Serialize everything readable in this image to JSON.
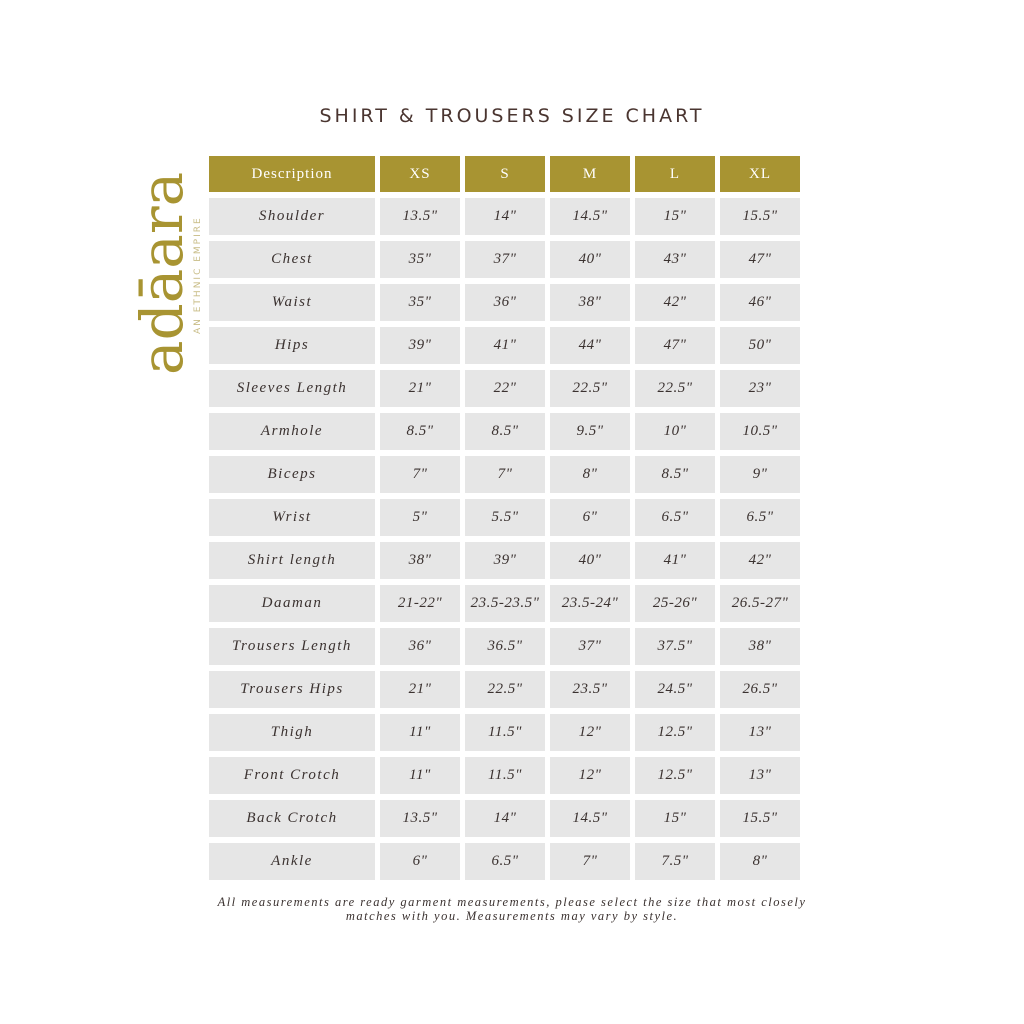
{
  "title": "SHIRT & TROUSERS SIZE CHART",
  "logo": {
    "name": "adāara",
    "tagline": "AN ETHNIC EMPIRE"
  },
  "colors": {
    "header": "#a89432",
    "cell": "#e6e6e6",
    "text": "#3b3230"
  },
  "table": {
    "headers": [
      "Description",
      "XS",
      "S",
      "M",
      "L",
      "XL"
    ],
    "rows": [
      [
        "Shoulder",
        "13.5\"",
        "14\"",
        "14.5\"",
        "15\"",
        "15.5\""
      ],
      [
        "Chest",
        "35\"",
        "37\"",
        "40\"",
        "43\"",
        "47\""
      ],
      [
        "Waist",
        "35\"",
        "36\"",
        "38\"",
        "42\"",
        "46\""
      ],
      [
        "Hips",
        "39\"",
        "41\"",
        "44\"",
        "47\"",
        "50\""
      ],
      [
        "Sleeves Length",
        "21\"",
        "22\"",
        "22.5\"",
        "22.5\"",
        "23\""
      ],
      [
        "Armhole",
        "8.5\"",
        "8.5\"",
        "9.5\"",
        "10\"",
        "10.5\""
      ],
      [
        "Biceps",
        "7\"",
        "7\"",
        "8\"",
        "8.5\"",
        "9\""
      ],
      [
        "Wrist",
        "5\"",
        "5.5\"",
        "6\"",
        "6.5\"",
        "6.5\""
      ],
      [
        "Shirt length",
        "38\"",
        "39\"",
        "40\"",
        "41\"",
        "42\""
      ],
      [
        "Daaman",
        "21-22\"",
        "23.5-23.5\"",
        "23.5-24\"",
        "25-26\"",
        "26.5-27\""
      ],
      [
        "Trousers Length",
        "36\"",
        "36.5\"",
        "37\"",
        "37.5\"",
        "38\""
      ],
      [
        "Trousers Hips",
        "21\"",
        "22.5\"",
        "23.5\"",
        "24.5\"",
        "26.5\""
      ],
      [
        "Thigh",
        "11\"",
        "11.5\"",
        "12\"",
        "12.5\"",
        "13\""
      ],
      [
        "Front Crotch",
        "11\"",
        "11.5\"",
        "12\"",
        "12.5\"",
        "13\""
      ],
      [
        "Back Crotch",
        "13.5\"",
        "14\"",
        "14.5\"",
        "15\"",
        "15.5\""
      ],
      [
        "Ankle",
        "6\"",
        "6.5\"",
        "7\"",
        "7.5\"",
        "8\""
      ]
    ]
  },
  "note": "All measurements are ready garment measurements, please select the size that most closely matches with you. Measurements may vary by style."
}
